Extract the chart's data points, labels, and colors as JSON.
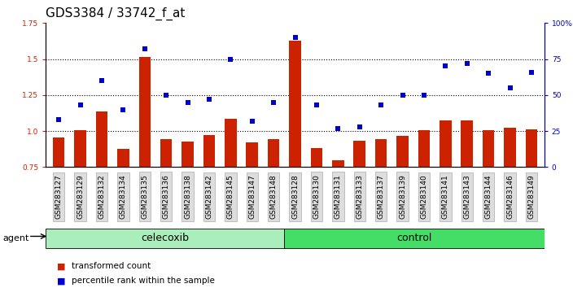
{
  "title": "GDS3384 / 33742_f_at",
  "samples": [
    "GSM283127",
    "GSM283129",
    "GSM283132",
    "GSM283134",
    "GSM283135",
    "GSM283136",
    "GSM283138",
    "GSM283142",
    "GSM283145",
    "GSM283147",
    "GSM283148",
    "GSM283128",
    "GSM283130",
    "GSM283131",
    "GSM283133",
    "GSM283137",
    "GSM283139",
    "GSM283140",
    "GSM283141",
    "GSM283143",
    "GSM283144",
    "GSM283146",
    "GSM283149"
  ],
  "groups": [
    "celecoxib",
    "celecoxib",
    "celecoxib",
    "celecoxib",
    "celecoxib",
    "celecoxib",
    "celecoxib",
    "celecoxib",
    "celecoxib",
    "celecoxib",
    "celecoxib",
    "control",
    "control",
    "control",
    "control",
    "control",
    "control",
    "control",
    "control",
    "control",
    "control",
    "control",
    "control"
  ],
  "bar_values": [
    0.955,
    1.005,
    1.135,
    0.875,
    1.515,
    0.945,
    0.925,
    0.97,
    1.085,
    0.92,
    0.945,
    1.625,
    0.88,
    0.795,
    0.93,
    0.945,
    0.965,
    1.005,
    1.075,
    1.075,
    1.005,
    1.025,
    1.01
  ],
  "scatter_values": [
    33,
    43,
    60,
    40,
    82,
    50,
    45,
    47,
    75,
    32,
    45,
    90,
    43,
    27,
    28,
    43,
    50,
    50,
    70,
    72,
    65,
    55,
    66
  ],
  "ylim_left": [
    0.75,
    1.75
  ],
  "ylim_right": [
    0,
    100
  ],
  "yticks_left": [
    0.75,
    1.0,
    1.25,
    1.5,
    1.75
  ],
  "yticks_right": [
    0,
    25,
    50,
    75,
    100
  ],
  "dotted_lines": [
    1.0,
    1.25,
    1.5
  ],
  "bar_color": "#cc2200",
  "scatter_color": "#0000cc",
  "celecoxib_color": "#aaeebb",
  "control_color": "#44dd66",
  "agent_label": "agent",
  "celecoxib_label": "celecoxib",
  "control_label": "control",
  "legend_bar": "transformed count",
  "legend_scatter": "percentile rank within the sample",
  "title_fontsize": 11,
  "tick_fontsize": 6.5,
  "label_fontsize": 9,
  "n_celecoxib": 11,
  "n_control": 12
}
